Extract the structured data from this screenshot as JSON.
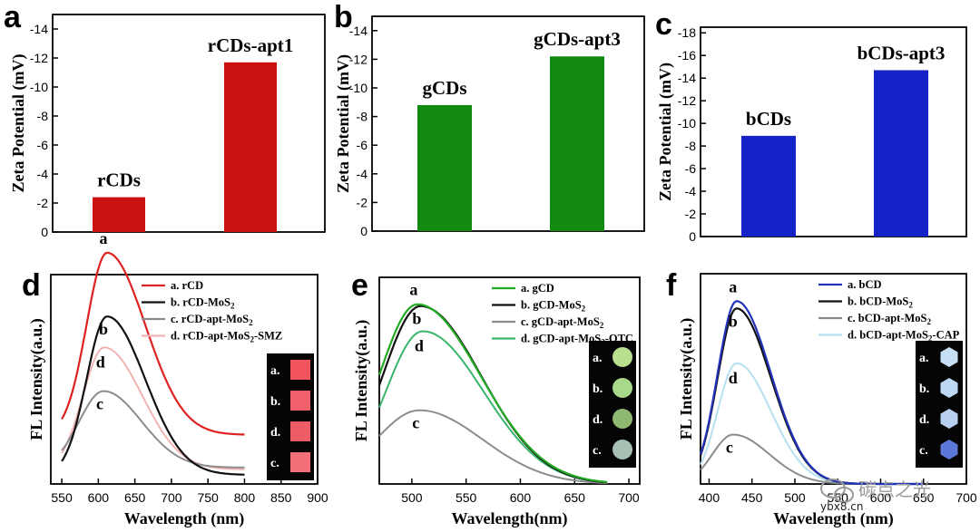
{
  "chart_data": [
    {
      "id": "a",
      "type": "bar",
      "panel_letter": "a",
      "ylabel": "Zeta Potential (mV)",
      "xlabel": "",
      "ylim": [
        0,
        -15
      ],
      "yticks": [
        "0",
        "-2",
        "-4",
        "-6",
        "-8",
        "-10",
        "-12",
        "-14"
      ],
      "ytick_values": [
        0,
        -2,
        -4,
        -6,
        -8,
        -10,
        -12,
        -14
      ],
      "categories": [
        "rCDs",
        "rCDs-apt1"
      ],
      "values": [
        -2.4,
        -11.7
      ],
      "color": "#cc1111"
    },
    {
      "id": "b",
      "type": "bar",
      "panel_letter": "b",
      "ylabel": "Zeta Potential (mV)",
      "xlabel": "",
      "ylim": [
        0,
        -15
      ],
      "yticks": [
        "0",
        "-2",
        "-4",
        "-6",
        "-8",
        "-10",
        "-12",
        "-14"
      ],
      "ytick_values": [
        0,
        -2,
        -4,
        -6,
        -8,
        -10,
        -12,
        -14
      ],
      "categories": [
        "gCDs",
        "gCDs-apt3"
      ],
      "values": [
        -8.8,
        -12.2
      ],
      "color": "#128a12"
    },
    {
      "id": "c",
      "type": "bar",
      "panel_letter": "c",
      "ylabel": "Zeta Potential (mV)",
      "xlabel": "",
      "ylim": [
        0,
        -18.5
      ],
      "yticks": [
        "0",
        "-2",
        "-4",
        "-6",
        "-8",
        "-10",
        "-12",
        "-14",
        "-16",
        "-18"
      ],
      "ytick_values": [
        0,
        -2,
        -4,
        -6,
        -8,
        -10,
        -12,
        -14,
        -16,
        -18
      ],
      "categories": [
        "bCDs",
        "bCDs-apt3"
      ],
      "values": [
        -8.9,
        -14.7
      ],
      "color": "#1522c8"
    },
    {
      "id": "d",
      "type": "line",
      "panel_letter": "d",
      "ylabel": "FL Intensity(a.u.)",
      "xlabel": "Wavelength (nm)",
      "xlim": [
        535,
        900
      ],
      "xticks": [
        "550",
        "600",
        "650",
        "700",
        "750",
        "800",
        "850",
        "900"
      ],
      "xtick_values": [
        550,
        600,
        650,
        700,
        750,
        800,
        850,
        900
      ],
      "ylim": [
        0,
        1.15
      ],
      "series": [
        {
          "name": "a. rCD",
          "letter": "a",
          "color": "#dd2222",
          "x0": 550,
          "x1": 800,
          "peak": 612,
          "amp": 1.0,
          "base": 0.27,
          "sigL": 28,
          "sigR": 52,
          "width": 2.2
        },
        {
          "name": "b. rCD-MoS2",
          "name_main": "b. rCD-MoS",
          "name_sub": "2",
          "name_tail": "",
          "letter": "b",
          "color": "#111111",
          "x0": 550,
          "x1": 800,
          "peak": 612,
          "amp": 0.87,
          "base": 0.05,
          "sigL": 28,
          "sigR": 52,
          "width": 2.2
        },
        {
          "name": "c. rCD-apt-MoS2",
          "name_main": "c. rCD-apt-MoS",
          "name_sub": "2",
          "name_tail": "",
          "letter": "c",
          "color": "#8c8c8c",
          "x0": 550,
          "x1": 800,
          "peak": 607,
          "amp": 0.42,
          "base": 0.09,
          "sigL": 33,
          "sigR": 52,
          "width": 2.0
        },
        {
          "name": "d. rCD-apt-MoS2-SMZ",
          "name_main": "d. rCD-apt-MoS",
          "name_sub": "2",
          "name_tail": "-SMZ",
          "letter": "d",
          "color": "#f2b3b3",
          "x0": 550,
          "x1": 800,
          "peak": 608,
          "amp": 0.67,
          "base": 0.08,
          "sigL": 29,
          "sigR": 52,
          "width": 2.0
        }
      ],
      "inset": {
        "labels": [
          "a.",
          "b.",
          "d.",
          "c."
        ],
        "colors": [
          "#f2555d",
          "#f0606a",
          "#ee5c66",
          "#f3707a"
        ],
        "shape": "square"
      }
    },
    {
      "id": "e",
      "type": "line",
      "panel_letter": "e",
      "ylabel": "FL Intensity(a.u.)",
      "xlabel": "Wavelength(nm)",
      "xlim": [
        470,
        710
      ],
      "xticks": [
        "500",
        "550",
        "600",
        "650",
        "700"
      ],
      "xtick_values": [
        500,
        550,
        600,
        650,
        700
      ],
      "ylim": [
        0,
        1.15
      ],
      "series": [
        {
          "name": "a. gCD",
          "letter": "a",
          "color": "#22aa22",
          "x0": 470,
          "x1": 680,
          "peak": 505,
          "amp": 1.0,
          "base": 0.0,
          "sigL": 35,
          "sigR": 58,
          "width": 2.2
        },
        {
          "name": "b. gCD-MoS2",
          "name_main": "b. gCD-MoS",
          "name_sub": "2",
          "name_tail": "",
          "letter": "b",
          "color": "#111111",
          "x0": 470,
          "x1": 680,
          "peak": 508,
          "amp": 0.99,
          "base": 0.0,
          "sigL": 35,
          "sigR": 56,
          "width": 2.2
        },
        {
          "name": "c. gCD-apt-MoS2",
          "name_main": "c. gCD-apt-MoS",
          "name_sub": "2",
          "name_tail": "",
          "letter": "c",
          "color": "#8c8c8c",
          "x0": 470,
          "x1": 680,
          "peak": 507,
          "amp": 0.41,
          "base": 0.0,
          "sigL": 40,
          "sigR": 58,
          "width": 2.0
        },
        {
          "name": "d. gCD-apt-MoS2-OTC",
          "name_main": "d. gCD-apt-MoS",
          "name_sub": "2",
          "name_tail": "-OTC",
          "letter": "d",
          "color": "#3ab56c",
          "x0": 470,
          "x1": 680,
          "peak": 510,
          "amp": 0.85,
          "base": 0.0,
          "sigL": 34,
          "sigR": 56,
          "width": 2.0
        }
      ],
      "inset": {
        "labels": [
          "a.",
          "b.",
          "d.",
          "c."
        ],
        "colors": [
          "#b8e090",
          "#a8d88a",
          "#8fb870",
          "#a9c0b4"
        ],
        "shape": "circle"
      }
    },
    {
      "id": "f",
      "type": "line",
      "panel_letter": "f",
      "ylabel": "FL Intensity(a.u.)",
      "xlabel": "Wavelength (nm)",
      "xlim": [
        390,
        700
      ],
      "xticks": [
        "400",
        "450",
        "500",
        "550",
        "600",
        "650",
        "700"
      ],
      "xtick_values": [
        400,
        450,
        500,
        550,
        600,
        650,
        700
      ],
      "ylim": [
        0,
        1.15
      ],
      "series": [
        {
          "name": "a. bCD",
          "letter": "a",
          "color": "#2233bb",
          "x0": 390,
          "x1": 650,
          "peak": 432,
          "amp": 1.0,
          "base": 0.0,
          "sigL": 22,
          "sigR": 40,
          "width": 2.2
        },
        {
          "name": "b. bCD-MoS2",
          "name_main": "b. bCD-MoS",
          "name_sub": "2",
          "name_tail": "",
          "letter": "b",
          "color": "#111111",
          "x0": 390,
          "x1": 650,
          "peak": 432,
          "amp": 0.96,
          "base": 0.0,
          "sigL": 22,
          "sigR": 40,
          "width": 2.2
        },
        {
          "name": "c. bCD-apt-MoS2",
          "name_main": "c. bCD-apt-MoS",
          "name_sub": "2",
          "name_tail": "",
          "letter": "c",
          "color": "#8c8c8c",
          "x0": 390,
          "x1": 650,
          "peak": 428,
          "amp": 0.27,
          "base": 0.0,
          "sigL": 24,
          "sigR": 42,
          "width": 2.0
        },
        {
          "name": "d. bCD-apt-MoS2-CAP",
          "name_main": "d. bCD-apt-MoS",
          "name_sub": "2",
          "name_tail": "-CAP",
          "letter": "d",
          "color": "#b7e1f0",
          "x0": 390,
          "x1": 650,
          "peak": 432,
          "amp": 0.66,
          "base": 0.0,
          "sigL": 22,
          "sigR": 40,
          "width": 2.0
        }
      ],
      "inset": {
        "labels": [
          "a.",
          "b.",
          "d.",
          "c."
        ],
        "colors": [
          "#c6dff5",
          "#bdd8f2",
          "#b8cff0",
          "#5c78d8"
        ],
        "shape": "hexagon"
      }
    }
  ],
  "watermark": {
    "text": "碳点之光",
    "url": "ybx8.cn",
    "icon": "wechat-icon"
  }
}
